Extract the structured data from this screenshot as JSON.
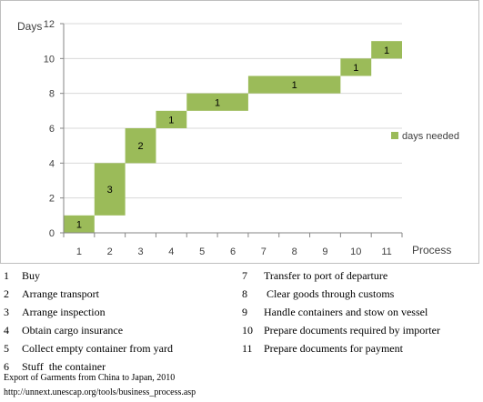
{
  "chart_data": {
    "type": "bar",
    "subtype": "floating-waterfall",
    "ylabel": "Days",
    "xlabel": "Process",
    "ylim": [
      0,
      12
    ],
    "yticks": [
      0,
      2,
      4,
      6,
      8,
      10,
      12
    ],
    "categories": [
      "1",
      "2",
      "3",
      "4",
      "5",
      "6",
      "7",
      "8",
      "9",
      "10",
      "11"
    ],
    "grid": "horizontal",
    "legend": "right",
    "series": [
      {
        "name": "days needed",
        "color": "#9bbb59",
        "bars": [
          {
            "start": 1,
            "end": 1,
            "base": 0,
            "value": 1,
            "label": "1"
          },
          {
            "start": 2,
            "end": 2,
            "base": 1,
            "value": 3,
            "label": "3"
          },
          {
            "start": 3,
            "end": 3,
            "base": 4,
            "value": 2,
            "label": "2"
          },
          {
            "start": 4,
            "end": 4,
            "base": 6,
            "value": 1,
            "label": "1"
          },
          {
            "start": 5,
            "end": 6,
            "base": 7,
            "value": 1,
            "label": "1"
          },
          {
            "start": 7,
            "end": 9,
            "base": 8,
            "value": 1,
            "label": "1"
          },
          {
            "start": 10,
            "end": 10,
            "base": 9,
            "value": 1,
            "label": "1"
          },
          {
            "start": 11,
            "end": 11,
            "base": 10,
            "value": 1,
            "label": "1"
          }
        ]
      }
    ]
  },
  "processes": [
    {
      "num": "1",
      "label": "Buy"
    },
    {
      "num": "2",
      "label": "Arrange transport"
    },
    {
      "num": "3",
      "label": "Arrange inspection"
    },
    {
      "num": "4",
      "label": "Obtain cargo insurance"
    },
    {
      "num": "5",
      "label": "Collect empty container from yard"
    },
    {
      "num": "6",
      "label": "Stuff  the container"
    },
    {
      "num": "7",
      "label": "Transfer to port of departure"
    },
    {
      "num": "8",
      "label": " Clear goods through customs"
    },
    {
      "num": "9",
      "label": "Handle containers and stow on vessel"
    },
    {
      "num": "10",
      "label": "Prepare documents required by importer"
    },
    {
      "num": "11",
      "label": "Prepare documents for payment"
    }
  ],
  "source": {
    "line1": "Export of Garments from China to Japan, 2010",
    "line2": "http://unnext.unescap.org/tools/business_process.asp"
  }
}
